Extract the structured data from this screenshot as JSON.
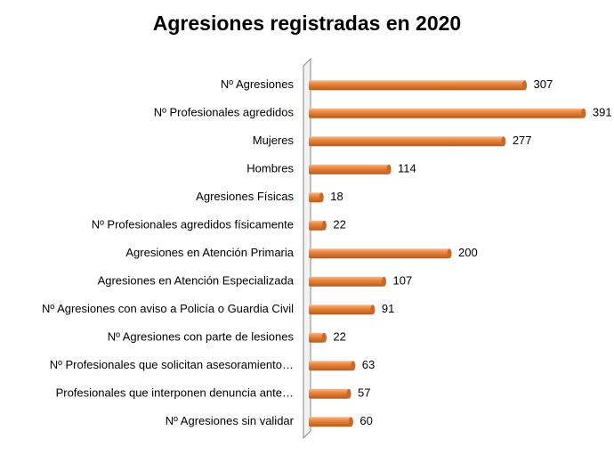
{
  "chart_data": {
    "type": "bar",
    "orientation": "horizontal",
    "title": "Agresiones registradas en 2020",
    "categories": [
      "Nº Agresiones",
      "Nº Profesionales agredidos",
      "Mujeres",
      "Hombres",
      "Agresiones Físicas",
      "Nº Profesionales agredidos físicamente",
      "Agresiones en Atención Primaria",
      "Agresiones en Atención Especializada",
      "Nº Agresiones con aviso a Policía o Guardia Civil",
      "Nº Agresiones con parte de lesiones",
      "Nº Profesionales que solicitan asesoramiento…",
      "Profesionales que interponen denuncia ante…",
      "Nº Agresiones sin validar"
    ],
    "values": [
      307,
      391,
      277,
      114,
      18,
      22,
      200,
      107,
      91,
      22,
      63,
      57,
      60
    ],
    "color": "#e8782f",
    "xlim": [
      0,
      400
    ]
  }
}
